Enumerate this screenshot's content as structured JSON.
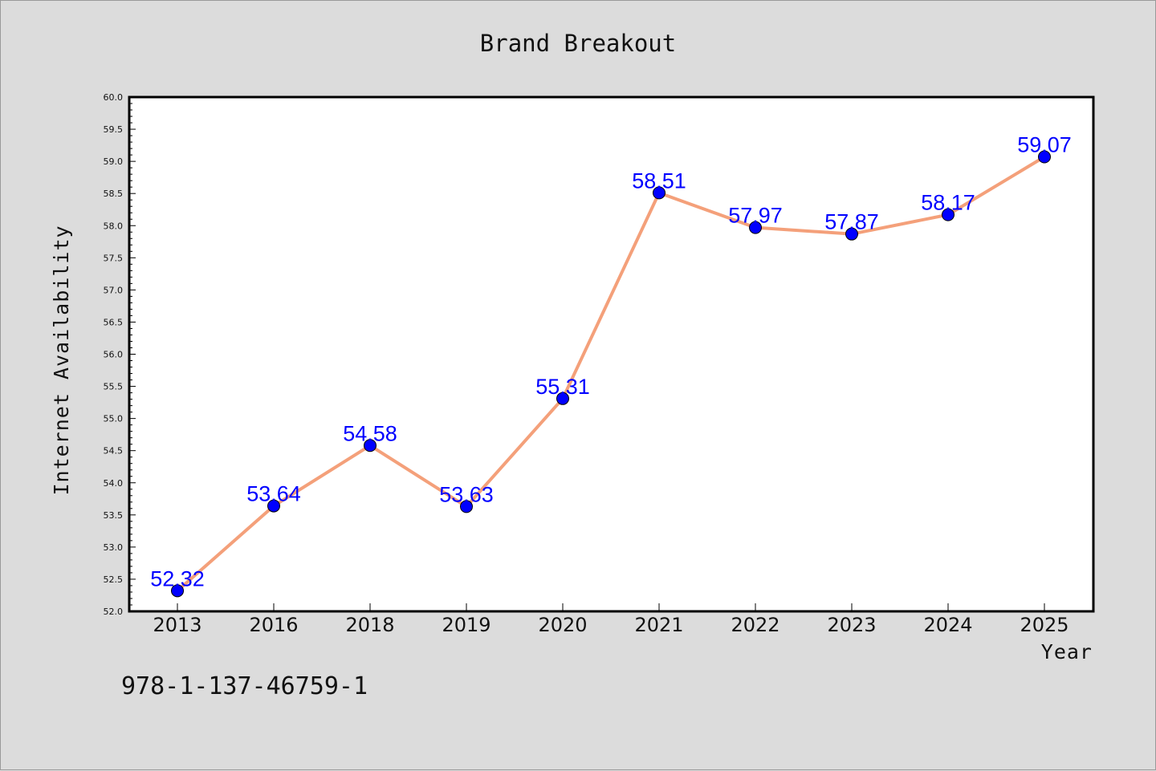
{
  "chart_data": {
    "type": "line",
    "title": "Brand Breakout",
    "xlabel": "Year",
    "ylabel": "Internet Availability",
    "categories": [
      "2013",
      "2016",
      "2018",
      "2019",
      "2020",
      "2021",
      "2022",
      "2023",
      "2024",
      "2025"
    ],
    "series": [
      {
        "values": [
          52.32,
          53.64,
          54.58,
          53.63,
          55.31,
          58.51,
          57.97,
          57.87,
          58.17,
          59.07
        ],
        "data_labels": [
          "52.32",
          "53.64",
          "54.58",
          "53.63",
          "55.31",
          "58.51",
          "57.97",
          "57.87",
          "58.17",
          "59.07"
        ],
        "line_color": "#f4a07a",
        "marker_color": "#0000ff"
      }
    ],
    "ylim": [
      52.0,
      60.0
    ],
    "yticks": [
      "52.0",
      "52.5",
      "53.0",
      "53.5",
      "54.0",
      "54.5",
      "55.0",
      "55.5",
      "56.0",
      "56.5",
      "57.0",
      "57.5",
      "58.0",
      "58.5",
      "59.0",
      "59.5",
      "60.0"
    ],
    "grid": false,
    "legend": "none"
  },
  "footnote": "978-1-137-46759-1",
  "colors": {
    "background": "#dcdcdc",
    "plot_background": "#ffffff",
    "line": "#f4a07a",
    "marker": "#0000ff",
    "data_label": "#0000ff"
  }
}
